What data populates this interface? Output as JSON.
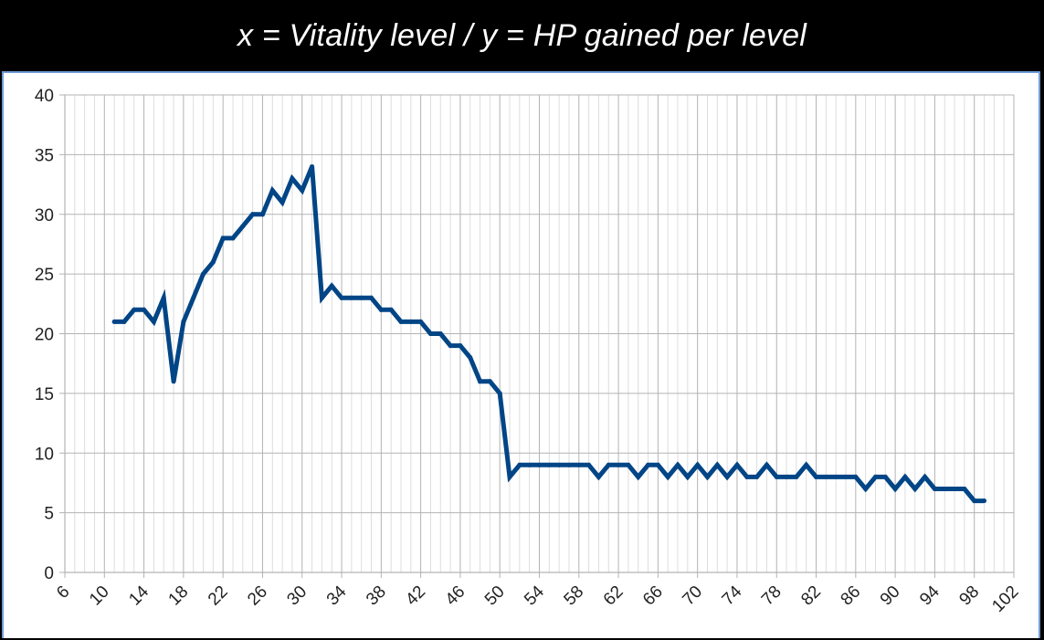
{
  "title": "x = Vitality level / y = HP gained per level",
  "colors": {
    "background": "#000000",
    "title_text": "#ffffff",
    "plot_background": "#ffffff",
    "frame_border": "#6f9bd6",
    "line": "#004586",
    "major_grid": "#b3b3b3",
    "minor_grid": "#dddddd"
  },
  "chart_data": {
    "type": "line",
    "title": "x = Vitality level / y = HP gained per level",
    "xlabel": "",
    "ylabel": "",
    "xlim": [
      6,
      102
    ],
    "ylim": [
      0,
      40
    ],
    "x_ticks": [
      6,
      10,
      14,
      18,
      22,
      26,
      30,
      34,
      38,
      42,
      46,
      50,
      54,
      58,
      62,
      66,
      70,
      74,
      78,
      82,
      86,
      90,
      94,
      98,
      102
    ],
    "y_ticks": [
      0,
      5,
      10,
      15,
      20,
      25,
      30,
      35,
      40
    ],
    "x_tick_labels": [
      "6",
      "10",
      "14",
      "18",
      "22",
      "26",
      "30",
      "34",
      "38",
      "42",
      "46",
      "50",
      "54",
      "58",
      "62",
      "66",
      "70",
      "74",
      "78",
      "82",
      "86",
      "90",
      "94",
      "98",
      "102"
    ],
    "y_tick_labels": [
      "0",
      "5",
      "10",
      "15",
      "20",
      "25",
      "30",
      "35",
      "40"
    ],
    "grid": true,
    "legend": "none",
    "series": [
      {
        "x": [
          11,
          12,
          13,
          14,
          15,
          16,
          17,
          18,
          19,
          20,
          21,
          22,
          23,
          24,
          25,
          26,
          27,
          28,
          29,
          30,
          31,
          32,
          33,
          34,
          35,
          36,
          37,
          38,
          39,
          40,
          41,
          42,
          43,
          44,
          45,
          46,
          47,
          48,
          49,
          50,
          51,
          52,
          53,
          54,
          55,
          56,
          57,
          58,
          59,
          60,
          61,
          62,
          63,
          64,
          65,
          66,
          67,
          68,
          69,
          70,
          71,
          72,
          73,
          74,
          75,
          76,
          77,
          78,
          79,
          80,
          81,
          82,
          83,
          84,
          85,
          86,
          87,
          88,
          89,
          90,
          91,
          92,
          93,
          94,
          95,
          96,
          97,
          98,
          99
        ],
        "values": [
          21,
          21,
          22,
          22,
          21,
          23,
          16,
          21,
          23,
          25,
          26,
          28,
          28,
          29,
          30,
          30,
          32,
          31,
          33,
          32,
          34,
          23,
          24,
          23,
          23,
          23,
          23,
          22,
          22,
          21,
          21,
          21,
          20,
          20,
          19,
          19,
          18,
          16,
          16,
          15,
          8,
          9,
          9,
          9,
          9,
          9,
          9,
          9,
          9,
          8,
          9,
          9,
          9,
          8,
          9,
          9,
          8,
          9,
          8,
          9,
          8,
          9,
          8,
          9,
          8,
          8,
          9,
          8,
          8,
          8,
          9,
          8,
          8,
          8,
          8,
          8,
          7,
          8,
          8,
          7,
          8,
          7,
          8,
          7,
          7,
          7,
          7,
          6,
          6
        ]
      }
    ]
  }
}
